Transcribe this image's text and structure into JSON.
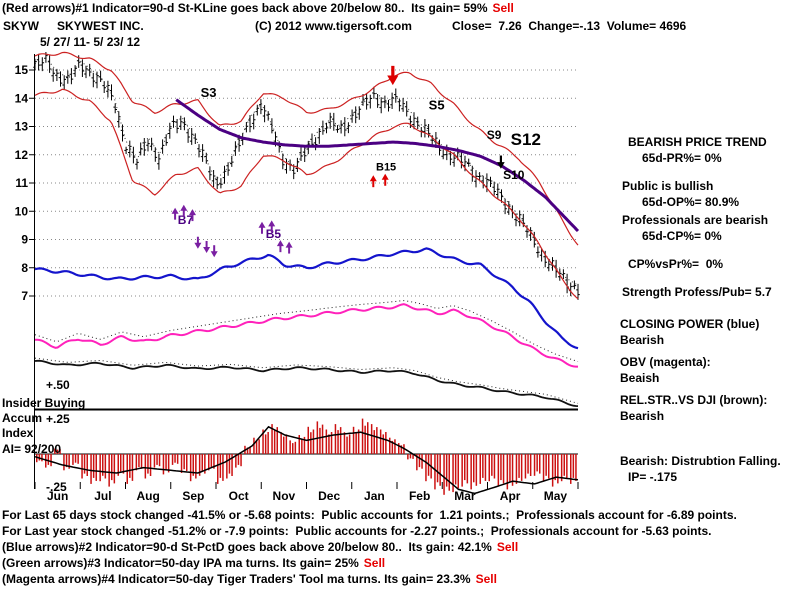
{
  "header": {
    "line1": "(Red arrows)#1 Indicator=90-d St-KLine goes back above 20/below 80..  Its gain= 59%",
    "sell1": "Sell",
    "ticker": "SKYW",
    "company": "SKYWEST INC.",
    "copyright": "(C) 2012 www.tigersoft.com",
    "stats": "Close=  7.26  Change=-.13  Volume= 4696",
    "date_range": "5/ 27/ 11- 5/ 23/ 12"
  },
  "panel": {
    "l1": "BEARISH PRICE TREND",
    "l2": "65d-PR%= 0%",
    "l3": "Public is bullish",
    "l4": "65d-OP%= 80.9%",
    "l5": "Professionals are bearish",
    "l6": "65d-CP%= 0%",
    "l7": "CP%vsPr%=  0%",
    "l8": "Strength Profess/Pub= 5.7",
    "l9": "CLOSING POWER (blue)",
    "l10": "Bearish",
    "l11": "OBV (magenta):",
    "l12": "Beaish",
    "l13": "REL.STR..VS DJI (brown):",
    "l14": "Bearish",
    "l15": "Bearish: Distrubtion Falling.",
    "l16": "IP= -.175"
  },
  "left_scale": {
    "plus50": "+.50",
    "insider": "Insider Buying",
    "accum": "Accum",
    "plus25": "+.25",
    "index": "Index",
    "ai": "AI= 92/200",
    "minus25": "-.25"
  },
  "footer": {
    "line1": "For Last 65 days stock changed -41.5% or -5.68 points:  Public accounts for  1.21 points.;  Professionals account for -6.89 points.",
    "line2": "For Last year stock changed -51.2% or -7.9 points:  Public accounts for -2.27 points.;  Professionals account for -5.63 points.",
    "line3": "(Blue arrows)#2 Indicator=90-d St-PctD goes back above 20/below 80..  Its gain: 42.1%",
    "line4": "(Green arrows)#3 Indicator=50-day IPA ma turns. Its gain= 25%",
    "line5": "(Magenta arrows)#4 Indicator=50-day Tiger Traders' Tool ma turns. Its gain= 23.3%",
    "sell": "Sell"
  },
  "chart_data": {
    "type": "candlestick",
    "title": "SKYW SKYWEST INC. 5/27/11 - 5/23/12",
    "ylim": [
      7,
      15
    ],
    "y_ticks": [
      15,
      14,
      13,
      12,
      11,
      10,
      9,
      8,
      7
    ],
    "months": [
      "Jun",
      "Jul",
      "Aug",
      "Sep",
      "Oct",
      "Nov",
      "Dec",
      "Jan",
      "Feb",
      "Mar",
      "Apr",
      "May"
    ],
    "colors": {
      "candle": "#000000",
      "band": "#cc2222",
      "ma": "#4b0082",
      "closing_power": "#1414cc",
      "obv": "#ff22bb",
      "rel": "#111111",
      "bars": "#cc1111",
      "sell": "#e60000"
    },
    "price_weekly_close": [
      15.1,
      15.3,
      14.8,
      14.6,
      15.2,
      14.9,
      14.5,
      13.9,
      12.4,
      11.7,
      12.5,
      11.9,
      12.9,
      13.2,
      12.6,
      11.8,
      11.0,
      11.4,
      12.3,
      13.2,
      13.7,
      12.9,
      11.8,
      11.4,
      12.2,
      12.7,
      13.1,
      12.9,
      13.3,
      13.7,
      14.1,
      13.8,
      13.9,
      13.5,
      13.0,
      12.6,
      12.2,
      11.9,
      11.7,
      11.3,
      11.0,
      10.6,
      10.1,
      9.6,
      9.0,
      8.4,
      7.9,
      7.5,
      7.26
    ],
    "upper_band": [
      [
        0,
        15.5
      ],
      [
        0.05,
        15.6
      ],
      [
        0.1,
        15.4
      ],
      [
        0.14,
        15.0
      ],
      [
        0.18,
        13.9
      ],
      [
        0.22,
        13.5
      ],
      [
        0.26,
        13.8
      ],
      [
        0.3,
        13.9
      ],
      [
        0.34,
        13.0
      ],
      [
        0.38,
        13.2
      ],
      [
        0.42,
        14.2
      ],
      [
        0.46,
        14.0
      ],
      [
        0.5,
        13.5
      ],
      [
        0.54,
        13.6
      ],
      [
        0.58,
        13.9
      ],
      [
        0.62,
        14.3
      ],
      [
        0.66,
        14.8
      ],
      [
        0.69,
        14.9
      ],
      [
        0.73,
        14.5
      ],
      [
        0.77,
        13.8
      ],
      [
        0.81,
        13.0
      ],
      [
        0.85,
        12.4
      ],
      [
        0.89,
        11.9
      ],
      [
        0.93,
        11.0
      ],
      [
        0.97,
        9.7
      ],
      [
        1,
        8.8
      ]
    ],
    "lower_band": [
      [
        0,
        14.1
      ],
      [
        0.05,
        14.3
      ],
      [
        0.1,
        13.9
      ],
      [
        0.14,
        13.2
      ],
      [
        0.18,
        11.1
      ],
      [
        0.22,
        10.6
      ],
      [
        0.26,
        11.3
      ],
      [
        0.3,
        11.5
      ],
      [
        0.34,
        10.6
      ],
      [
        0.38,
        10.9
      ],
      [
        0.42,
        12.0
      ],
      [
        0.46,
        11.8
      ],
      [
        0.5,
        11.3
      ],
      [
        0.54,
        11.6
      ],
      [
        0.58,
        12.1
      ],
      [
        0.62,
        12.6
      ],
      [
        0.66,
        13.0
      ],
      [
        0.69,
        13.1
      ],
      [
        0.73,
        12.6
      ],
      [
        0.77,
        12.0
      ],
      [
        0.81,
        11.2
      ],
      [
        0.85,
        10.5
      ],
      [
        0.89,
        9.8
      ],
      [
        0.93,
        8.8
      ],
      [
        0.97,
        7.6
      ],
      [
        1,
        6.9
      ]
    ],
    "purple_ma": [
      [
        0.26,
        13.95
      ],
      [
        0.3,
        13.4
      ],
      [
        0.34,
        12.9
      ],
      [
        0.38,
        12.6
      ],
      [
        0.42,
        12.45
      ],
      [
        0.46,
        12.35
      ],
      [
        0.5,
        12.3
      ],
      [
        0.54,
        12.3
      ],
      [
        0.58,
        12.35
      ],
      [
        0.62,
        12.4
      ],
      [
        0.66,
        12.45
      ],
      [
        0.7,
        12.4
      ],
      [
        0.74,
        12.3
      ],
      [
        0.78,
        12.15
      ],
      [
        0.82,
        11.95
      ],
      [
        0.86,
        11.6
      ],
      [
        0.9,
        11.1
      ],
      [
        0.94,
        10.5
      ],
      [
        0.97,
        9.9
      ],
      [
        1,
        9.3
      ]
    ],
    "closing_power": [
      [
        0,
        7.95
      ],
      [
        0.05,
        7.85
      ],
      [
        0.1,
        7.72
      ],
      [
        0.15,
        7.6
      ],
      [
        0.2,
        7.66
      ],
      [
        0.25,
        7.7
      ],
      [
        0.3,
        7.58
      ],
      [
        0.35,
        8.0
      ],
      [
        0.4,
        8.3
      ],
      [
        0.43,
        8.45
      ],
      [
        0.46,
        8.1
      ],
      [
        0.5,
        8.0
      ],
      [
        0.54,
        8.15
      ],
      [
        0.58,
        8.25
      ],
      [
        0.62,
        8.35
      ],
      [
        0.66,
        8.5
      ],
      [
        0.7,
        8.6
      ],
      [
        0.72,
        8.65
      ],
      [
        0.75,
        8.45
      ],
      [
        0.78,
        8.25
      ],
      [
        0.82,
        8.1
      ],
      [
        0.85,
        7.7
      ],
      [
        0.88,
        7.3
      ],
      [
        0.91,
        6.8
      ],
      [
        0.94,
        6.1
      ],
      [
        0.97,
        5.5
      ],
      [
        1,
        5.15
      ]
    ],
    "obv": [
      [
        0,
        5.45
      ],
      [
        0.04,
        5.2
      ],
      [
        0.08,
        5.5
      ],
      [
        0.12,
        5.28
      ],
      [
        0.16,
        5.55
      ],
      [
        0.2,
        5.38
      ],
      [
        0.25,
        5.6
      ],
      [
        0.3,
        5.75
      ],
      [
        0.35,
        5.9
      ],
      [
        0.4,
        6.05
      ],
      [
        0.45,
        6.2
      ],
      [
        0.5,
        6.3
      ],
      [
        0.55,
        6.42
      ],
      [
        0.6,
        6.52
      ],
      [
        0.65,
        6.6
      ],
      [
        0.68,
        6.66
      ],
      [
        0.71,
        6.55
      ],
      [
        0.74,
        6.38
      ],
      [
        0.77,
        6.48
      ],
      [
        0.8,
        6.3
      ],
      [
        0.84,
        5.95
      ],
      [
        0.88,
        5.55
      ],
      [
        0.92,
        5.1
      ],
      [
        0.96,
        4.75
      ],
      [
        1,
        4.5
      ]
    ],
    "rel_strength": [
      [
        0,
        4.7
      ],
      [
        0.06,
        4.55
      ],
      [
        0.12,
        4.62
      ],
      [
        0.18,
        4.45
      ],
      [
        0.24,
        4.55
      ],
      [
        0.3,
        4.42
      ],
      [
        0.36,
        4.48
      ],
      [
        0.42,
        4.36
      ],
      [
        0.48,
        4.46
      ],
      [
        0.54,
        4.4
      ],
      [
        0.6,
        4.3
      ],
      [
        0.66,
        4.36
      ],
      [
        0.7,
        4.26
      ],
      [
        0.74,
        4.02
      ],
      [
        0.78,
        3.86
      ],
      [
        0.82,
        3.76
      ],
      [
        0.86,
        3.62
      ],
      [
        0.9,
        3.52
      ],
      [
        0.94,
        3.42
      ],
      [
        1,
        3.1
      ]
    ],
    "ai_scale": {
      "plus50": 0.5,
      "plus25": 0.25,
      "minus25": -0.25
    },
    "ai_line": [
      [
        0,
        -0.02
      ],
      [
        0.05,
        -0.08
      ],
      [
        0.1,
        -0.12
      ],
      [
        0.15,
        -0.14
      ],
      [
        0.2,
        -0.1
      ],
      [
        0.25,
        -0.12
      ],
      [
        0.3,
        -0.14
      ],
      [
        0.35,
        -0.06
      ],
      [
        0.4,
        0.06
      ],
      [
        0.43,
        0.2
      ],
      [
        0.46,
        0.14
      ],
      [
        0.5,
        0.1
      ],
      [
        0.55,
        0.14
      ],
      [
        0.6,
        0.16
      ],
      [
        0.65,
        0.1
      ],
      [
        0.68,
        0.04
      ],
      [
        0.72,
        -0.06
      ],
      [
        0.75,
        -0.16
      ],
      [
        0.78,
        -0.26
      ],
      [
        0.81,
        -0.29
      ],
      [
        0.85,
        -0.24
      ],
      [
        0.88,
        -0.2
      ],
      [
        0.92,
        -0.22
      ],
      [
        0.96,
        -0.17
      ],
      [
        1,
        -0.19
      ]
    ],
    "ai_bars": [
      -0.06,
      -0.1,
      0.04,
      -0.12,
      -0.08,
      -0.18,
      -0.22,
      -0.2,
      -0.24,
      -0.16,
      -0.22,
      -0.12,
      -0.18,
      -0.1,
      -0.15,
      -0.08,
      -0.14,
      -0.2,
      -0.16,
      -0.12,
      -0.22,
      -0.18,
      -0.1,
      0.06,
      0.12,
      0.18,
      0.22,
      0.16,
      0.1,
      0.14,
      0.2,
      0.24,
      0.18,
      0.22,
      0.16,
      0.2,
      0.26,
      0.22,
      0.18,
      0.12,
      0.08,
      -0.04,
      -0.12,
      -0.2,
      -0.26,
      -0.3,
      -0.28,
      -0.24,
      -0.26,
      -0.22,
      -0.2,
      -0.24,
      -0.26,
      -0.22,
      -0.18,
      -0.16,
      -0.2,
      -0.24,
      -0.2,
      -0.22
    ],
    "annotations": [
      {
        "text": "S3",
        "x": 0.305,
        "y": 14.05,
        "size": 13,
        "color": "#000000"
      },
      {
        "text": "S5",
        "x": 0.725,
        "y": 13.6,
        "size": 13,
        "color": "#000000"
      },
      {
        "text": "S9",
        "x": 0.832,
        "y": 12.55,
        "size": 12,
        "color": "#000000"
      },
      {
        "text": "S12",
        "x": 0.876,
        "y": 12.35,
        "size": 17,
        "color": "#000000"
      },
      {
        "text": "S10",
        "x": 0.862,
        "y": 11.15,
        "size": 12,
        "color": "#000000"
      },
      {
        "text": "B7",
        "x": 0.263,
        "y": 9.55,
        "size": 12,
        "color": "#4b0082"
      },
      {
        "text": "B5",
        "x": 0.425,
        "y": 9.05,
        "size": 12,
        "color": "#4b0082"
      },
      {
        "text": "B15",
        "x": 0.628,
        "y": 11.45,
        "size": 11,
        "color": "#000000"
      }
    ],
    "arrows": [
      {
        "dir": "down",
        "color": "#dd0000",
        "x": 0.659,
        "y": 14.75,
        "size": 1.6
      },
      {
        "dir": "up",
        "color": "#dd0000",
        "x": 0.623,
        "y": 11.1,
        "size": 1
      },
      {
        "dir": "up",
        "color": "#dd0000",
        "x": 0.645,
        "y": 11.15,
        "size": 1
      },
      {
        "dir": "down",
        "color": "#000000",
        "x": 0.858,
        "y": 11.7,
        "size": 1.1
      },
      {
        "dir": "up",
        "color": "#7a1fa2",
        "x": 0.258,
        "y": 9.95,
        "size": 1
      },
      {
        "dir": "up",
        "color": "#7a1fa2",
        "x": 0.274,
        "y": 10.05,
        "size": 1
      },
      {
        "dir": "up",
        "color": "#7a1fa2",
        "x": 0.29,
        "y": 9.9,
        "size": 1
      },
      {
        "dir": "down",
        "color": "#7a1fa2",
        "x": 0.3,
        "y": 8.85,
        "size": 1
      },
      {
        "dir": "down",
        "color": "#7a1fa2",
        "x": 0.316,
        "y": 8.7,
        "size": 1
      },
      {
        "dir": "down",
        "color": "#7a1fa2",
        "x": 0.33,
        "y": 8.55,
        "size": 1
      },
      {
        "dir": "up",
        "color": "#7a1fa2",
        "x": 0.418,
        "y": 9.45,
        "size": 1
      },
      {
        "dir": "up",
        "color": "#7a1fa2",
        "x": 0.436,
        "y": 9.5,
        "size": 1
      },
      {
        "dir": "up",
        "color": "#7a1fa2",
        "x": 0.452,
        "y": 8.8,
        "size": 1
      },
      {
        "dir": "up",
        "color": "#7a1fa2",
        "x": 0.468,
        "y": 8.75,
        "size": 1
      }
    ]
  }
}
